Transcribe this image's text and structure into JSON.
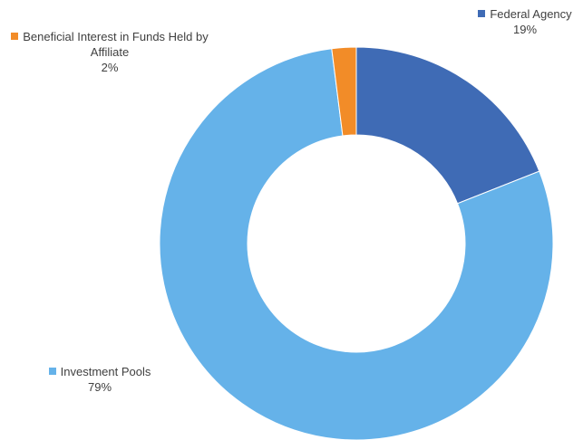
{
  "chart_data": {
    "type": "donut",
    "categories": [
      "Federal Agency",
      "Investment Pools",
      "Beneficial Interest in Funds Held by Affiliate"
    ],
    "values": [
      19,
      79,
      2
    ],
    "value_labels": [
      "19%",
      "79%",
      "2%"
    ],
    "colors": [
      "#3f6bb5",
      "#65b2e9",
      "#f28c28"
    ]
  }
}
